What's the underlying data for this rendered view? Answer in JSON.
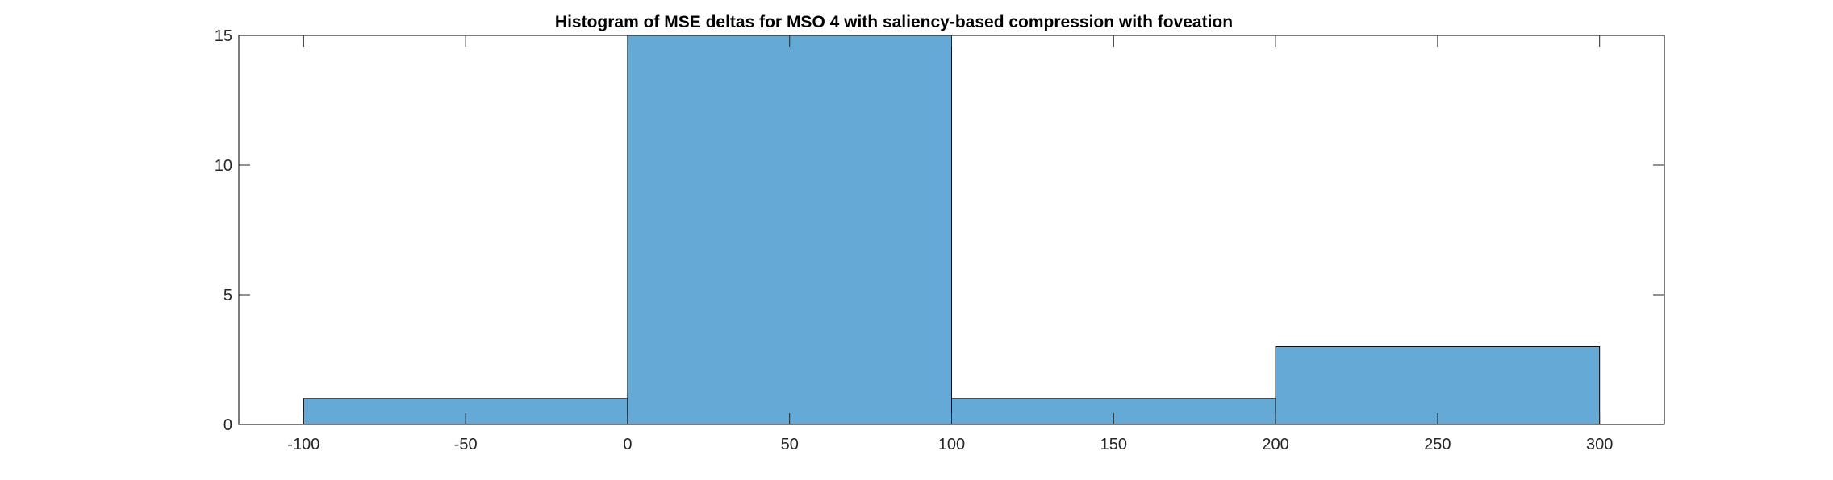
{
  "chart_data": {
    "type": "bar",
    "title": "Histogram of MSE deltas for MSO 4 with saliency-based compression with foveation",
    "xlabel": "",
    "ylabel": "",
    "bin_edges": [
      -100,
      0,
      100,
      200,
      300
    ],
    "values": [
      1,
      15,
      1,
      3
    ],
    "xlim": [
      -120,
      320
    ],
    "ylim": [
      0,
      15
    ],
    "x_ticks": [
      -100,
      -50,
      0,
      50,
      100,
      150,
      200,
      250,
      300
    ],
    "y_ticks": [
      0,
      5,
      10,
      15
    ],
    "grid": false,
    "legend": "none",
    "colors": {
      "bar_fill": "#65a9d7",
      "bar_edge": "#000000",
      "axes": "#262626"
    }
  }
}
